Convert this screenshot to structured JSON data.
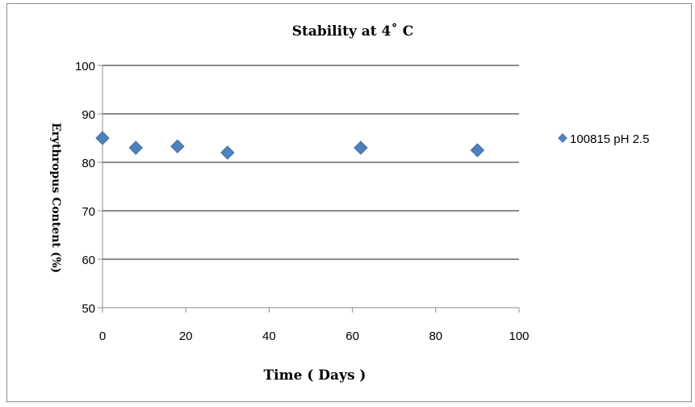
{
  "chart_data": {
    "type": "scatter",
    "title": "Stability at 4˚ C",
    "xlabel": "Time ( Days )",
    "ylabel": "Erythropus Content (%)",
    "xlim": [
      0,
      100
    ],
    "ylim": [
      50,
      100
    ],
    "x_ticks": [
      "0",
      "20",
      "40",
      "60",
      "80",
      "100"
    ],
    "y_ticks": [
      "50",
      "60",
      "70",
      "80",
      "90",
      "100"
    ],
    "grid": "horizontal",
    "legend_position": "right",
    "series": [
      {
        "name": "100815 pH 2.5",
        "color": "#4f81bd",
        "marker": "diamond",
        "points": [
          {
            "x": 0,
            "y": 85
          },
          {
            "x": 8,
            "y": 83
          },
          {
            "x": 18,
            "y": 83.3
          },
          {
            "x": 30,
            "y": 82
          },
          {
            "x": 62,
            "y": 83
          },
          {
            "x": 90,
            "y": 82.5
          }
        ]
      }
    ]
  }
}
